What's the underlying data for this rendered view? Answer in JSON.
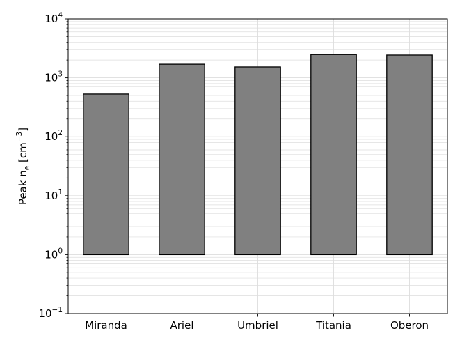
{
  "chart_data": {
    "type": "bar",
    "categories": [
      "Miranda",
      "Ariel",
      "Umbriel",
      "Titania",
      "Oberon"
    ],
    "values": [
      530,
      1700,
      1530,
      2480,
      2430
    ],
    "bar_base": 1,
    "ylabel": "Peak n_e [cm^-3]",
    "ylabel_parts": {
      "main": "Peak n",
      "subscript": "e",
      "bracket_open": " [cm",
      "superscript": "−3",
      "bracket_close": "]"
    },
    "y_scale": "log",
    "ylim": [
      0.1,
      10000
    ],
    "y_ticks": [
      {
        "value": 0.1,
        "base": "10",
        "exp": "−1"
      },
      {
        "value": 1,
        "base": "10",
        "exp": "0"
      },
      {
        "value": 10,
        "base": "10",
        "exp": "1"
      },
      {
        "value": 100,
        "base": "10",
        "exp": "2"
      },
      {
        "value": 1000,
        "base": "10",
        "exp": "3"
      },
      {
        "value": 10000,
        "base": "10",
        "exp": "4"
      }
    ],
    "grid": true,
    "colors": {
      "bar_fill": "#808080",
      "bar_edge": "#000000",
      "grid": "#dddddd"
    }
  }
}
